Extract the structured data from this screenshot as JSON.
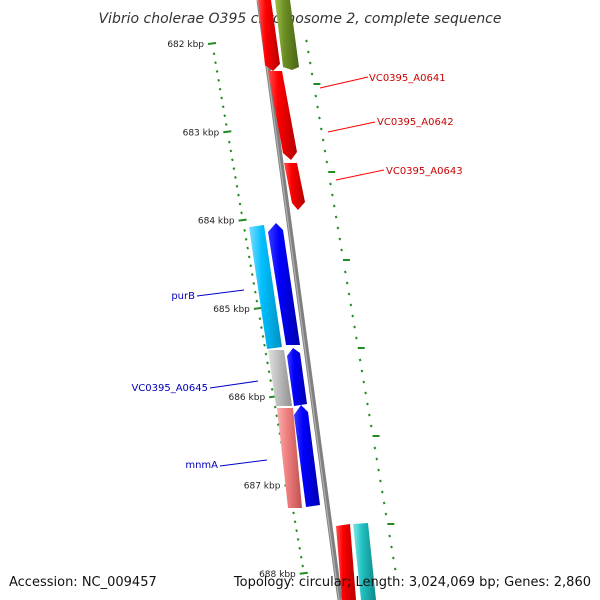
{
  "title": "Vibrio cholerae O395 chromosome 2, complete sequence",
  "ticks": [
    "682 kbp",
    "683 kbp",
    "684 kbp",
    "685 kbp",
    "686 kbp",
    "687 kbp",
    "688 kbp"
  ],
  "genes": {
    "forward_labels": [
      "VC0395_A0641",
      "VC0395_A0642",
      "VC0395_A0643"
    ],
    "reverse_labels": [
      "purB",
      "VC0395_A0645",
      "mnmA"
    ]
  },
  "footer": {
    "accession": "Accession: NC_009457",
    "topology": "Topology: circular; Length: 3,024,069 bp; Genes: 2,860"
  },
  "colors": {
    "red": "#ff0000",
    "olive": "#6b8e23",
    "blue": "#0000ff",
    "cyan": "#00bfff",
    "gray": "#c0c0c0",
    "pink": "#f08080",
    "teal": "#20c0c0",
    "tick": "#228b22",
    "backbone": "#808080"
  }
}
